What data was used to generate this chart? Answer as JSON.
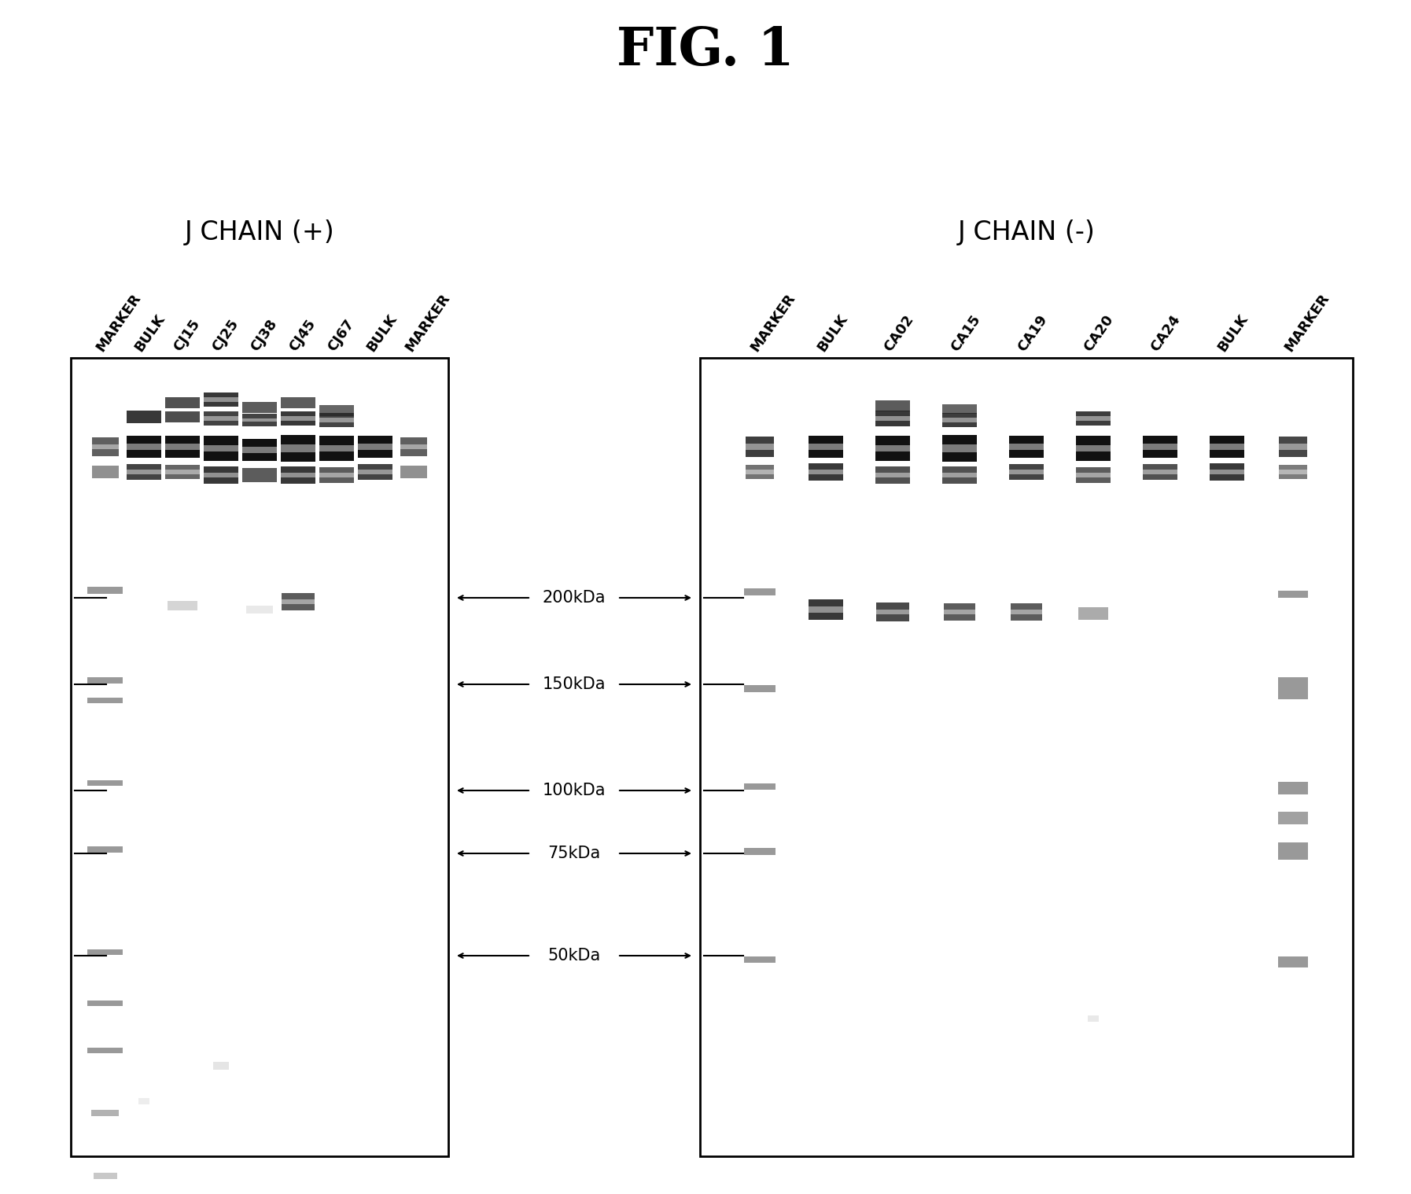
{
  "title": "FIG. 1",
  "title_fontsize": 48,
  "left_panel_title": "J CHAIN (+)",
  "right_panel_title": "J CHAIN (-)",
  "panel_title_fontsize": 24,
  "left_lanes": [
    "MARKER",
    "BULK",
    "CJ15",
    "CJ25",
    "CJ38",
    "CJ45",
    "CJ67",
    "BULK",
    "MARKER"
  ],
  "right_lanes": [
    "MARKER",
    "BULK",
    "CA02",
    "CA15",
    "CA19",
    "CA20",
    "CA24",
    "BULK",
    "MARKER"
  ],
  "mw_labels": [
    "200kDa",
    "150kDa",
    "100kDa",
    "75kDa",
    "50kDa"
  ],
  "bg_color": "#ffffff",
  "lane_label_fontsize": 13,
  "mw_label_fontsize": 15
}
